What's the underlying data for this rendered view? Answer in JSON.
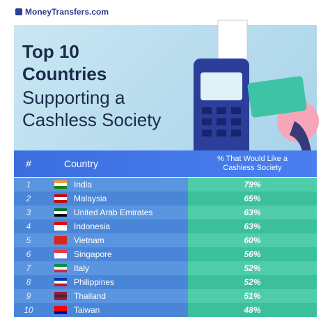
{
  "logo": "MoneyTransfers.com",
  "title": {
    "line1": "Top 10",
    "line2": "Countries",
    "line3": "Supporting a",
    "line4": "Cashless Society"
  },
  "table": {
    "header": [
      "#",
      "Country",
      "% That Would Like a Cashless Society"
    ],
    "rows": [
      [
        "1",
        "India",
        "79%"
      ],
      [
        "2",
        "Malaysia",
        "65%"
      ],
      [
        "3",
        "United Arab Emirates",
        "63%"
      ],
      [
        "4",
        "Indonesia",
        "63%"
      ],
      [
        "5",
        "Vietnam",
        "60%"
      ],
      [
        "6",
        "Singapore",
        "56%"
      ],
      [
        "7",
        "Italy",
        "52%"
      ],
      [
        "8",
        "Philippines",
        "52%"
      ],
      [
        "9",
        "Thailand",
        "51%"
      ],
      [
        "10",
        "Taiwan",
        "48%"
      ]
    ]
  }
}
